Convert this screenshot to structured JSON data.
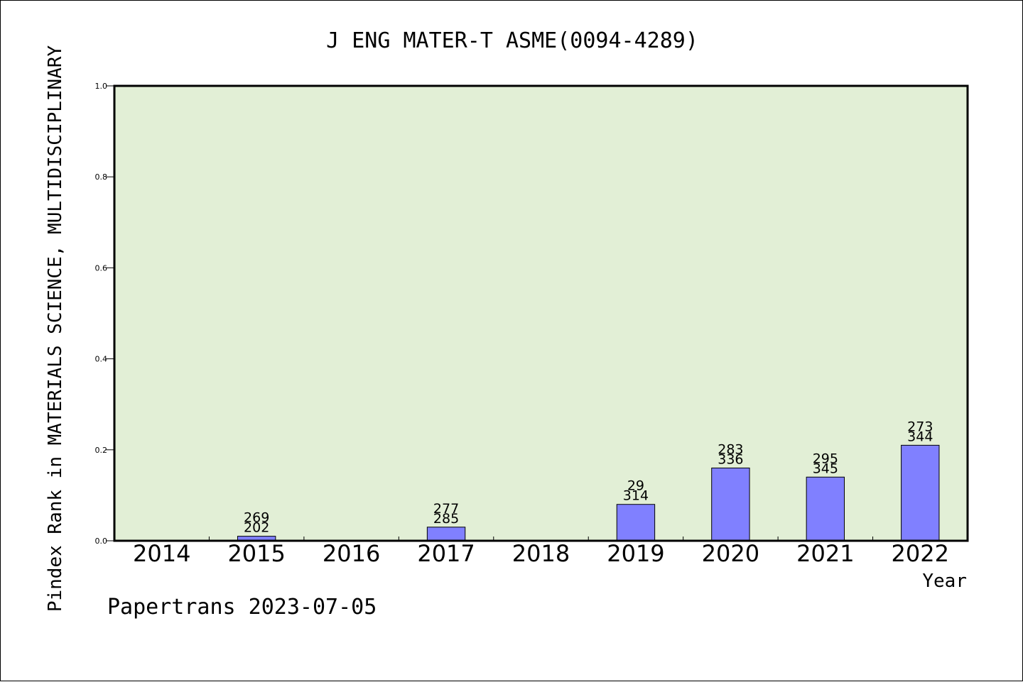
{
  "chart_data": {
    "type": "bar",
    "title": "J ENG MATER-T ASME(0094-4289)",
    "xlabel": "Year",
    "ylabel": "Pindex Rank in MATERIALS SCIENCE, MULTIDISCIPLINARY",
    "categories": [
      "2014",
      "2015",
      "2016",
      "2017",
      "2018",
      "2019",
      "2020",
      "2021",
      "2022"
    ],
    "values": [
      0,
      0.01,
      0,
      0.03,
      0,
      0.08,
      0.16,
      0.14,
      0.21
    ],
    "label_top": [
      "",
      "269",
      "",
      "277",
      "",
      "29",
      "283",
      "295",
      "273"
    ],
    "label_bottom": [
      "",
      "202",
      "",
      "285",
      "",
      "314",
      "336",
      "345",
      "344"
    ],
    "ylim": [
      0,
      1.0
    ],
    "yticks": [
      "0.0",
      "0.2",
      "0.4",
      "0.6",
      "0.8",
      "1.0"
    ],
    "grid": false,
    "colors": {
      "plot_bg": "#e2efd6",
      "bar": "#8080ff"
    }
  },
  "footer": {
    "text": "Papertrans 2023-07-05"
  }
}
